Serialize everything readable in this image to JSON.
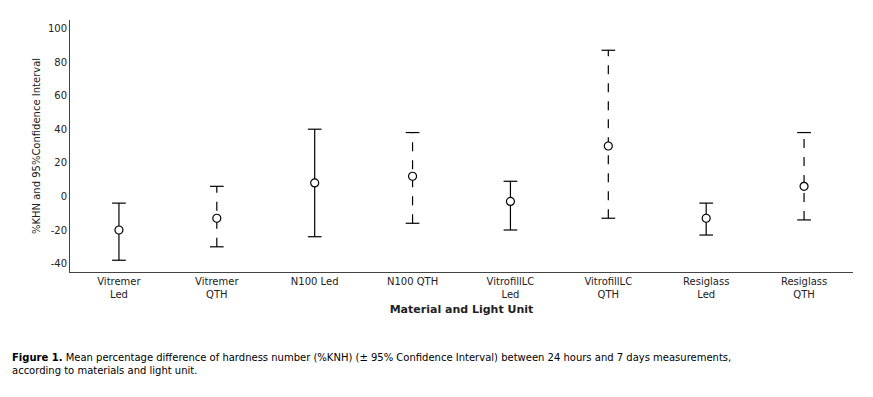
{
  "chart_data": {
    "type": "errorbar",
    "xlabel": "Material and Light Unit",
    "ylabel": "%KHN and 95%Confidence Interval",
    "categories": [
      "Vitremer\nLed",
      "Vitremer\nQTH",
      "N100 Led",
      "N100 QTH",
      "VitrofillLC\nLed",
      "VitrofillLC\nQTH",
      "Resiglass\nLed",
      "Resiglass\nQTH"
    ],
    "series": [
      {
        "line_style": "solid",
        "values": [
          -20,
          null,
          8,
          null,
          -3,
          null,
          -13,
          null
        ],
        "lower_errors": [
          18,
          null,
          32,
          null,
          17,
          null,
          10,
          null
        ],
        "upper_errors": [
          16,
          null,
          32,
          null,
          12,
          null,
          9,
          null
        ]
      },
      {
        "line_style": "dashed",
        "values": [
          null,
          -13,
          null,
          12,
          null,
          30,
          null,
          6
        ],
        "lower_errors": [
          null,
          17,
          null,
          28,
          null,
          43,
          null,
          20
        ],
        "upper_errors": [
          null,
          19,
          null,
          26,
          null,
          57,
          null,
          32
        ]
      }
    ],
    "color": "black",
    "marker": "circle",
    "ylim": [
      -45,
      105
    ],
    "yticks": [
      -40,
      -20,
      0,
      20,
      40,
      60,
      80,
      100
    ],
    "grid": false,
    "annotations": [
      "Figure 1.",
      " Mean percentage difference of hardness number (%KNH) (± 95% Confidence Interval) between 24 hours and 7 days measurements,\naccording to materials and light unit."
    ]
  }
}
